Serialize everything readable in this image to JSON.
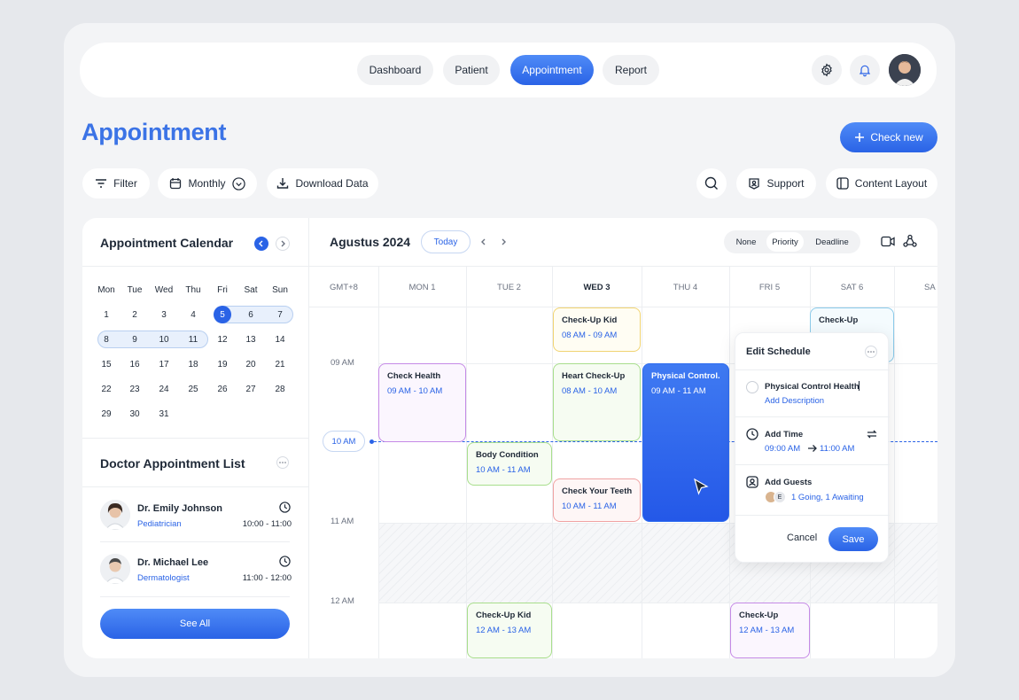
{
  "nav": {
    "tabs": [
      {
        "label": "Dashboard"
      },
      {
        "label": "Patient"
      },
      {
        "label": "Appointment"
      },
      {
        "label": "Report"
      }
    ],
    "settings_icon": "gear-icon",
    "notification_icon": "bell-icon"
  },
  "page": {
    "title": "Appointment",
    "check_new": "Check new"
  },
  "toolbar": {
    "filter": "Filter",
    "view_mode": "Monthly",
    "download": "Download Data",
    "support": "Support",
    "content_layout": "Content Layout"
  },
  "calendar": {
    "title": "Appointment Calendar",
    "weekdays": [
      "Mon",
      "Tue",
      "Wed",
      "Thu",
      "Fri",
      "Sat",
      "Sun"
    ],
    "weeks": [
      [
        "1",
        "2",
        "3",
        "4",
        "5",
        "6",
        "7"
      ],
      [
        "8",
        "9",
        "10",
        "11",
        "12",
        "13",
        "14"
      ],
      [
        "15",
        "16",
        "17",
        "18",
        "19",
        "20",
        "21"
      ],
      [
        "22",
        "23",
        "24",
        "25",
        "26",
        "27",
        "28"
      ],
      [
        "29",
        "30",
        "31",
        "",
        "",
        "",
        ""
      ]
    ],
    "selected_day": "5"
  },
  "doctors": {
    "title": "Doctor Appointment List",
    "list": [
      {
        "name": "Dr. Emily Johnson",
        "specialty": "Pediatrician",
        "time": "10:00 - 11:00"
      },
      {
        "name": "Dr. Michael Lee",
        "specialty": "Dermatologist",
        "time": "11:00 - 12:00"
      }
    ],
    "see_all": "See All"
  },
  "schedule": {
    "month": "Agustus 2024",
    "today": "Today",
    "filters": [
      "None",
      "Priority",
      "Deadline"
    ],
    "timezone": "GMT+8",
    "days": [
      "MON 1",
      "TUE 2",
      "WED 3",
      "THU 4",
      "FRI 5",
      "SAT 6",
      "SA"
    ],
    "times": [
      "09 AM",
      "10 AM",
      "11 AM",
      "12 AM"
    ],
    "events": [
      {
        "title": "Check-Up Kid",
        "time": "08 AM - 09 AM"
      },
      {
        "title": "Check-Up",
        "time": ""
      },
      {
        "title": "Check Health",
        "time": "09 AM - 10 AM"
      },
      {
        "title": "Heart Check-Up",
        "time": "08 AM - 10 AM"
      },
      {
        "title": "Physical Control...",
        "time": "09 AM - 11 AM"
      },
      {
        "title": "Body Condition",
        "time": "10 AM - 11 AM"
      },
      {
        "title": "Check Your Teeth",
        "time": "10 AM - 11 AM"
      },
      {
        "title": "Check-Up Kid",
        "time": "12 AM - 13 AM"
      },
      {
        "title": "Check-Up",
        "time": "12 AM - 13 AM"
      }
    ]
  },
  "edit": {
    "title": "Edit Schedule",
    "event_name": "Physical Control Health",
    "add_description": "Add Description",
    "add_time": "Add Time",
    "time_start": "09:00 AM",
    "time_end": "11:00 AM",
    "add_guests": "Add Guests",
    "guest_badge": "E",
    "guests_status": "1 Going, 1 Awaiting",
    "cancel": "Cancel",
    "save": "Save"
  },
  "colors": {
    "accent": "#2a63e6",
    "yellow": "#f5d76e",
    "purple": "#c58ae6",
    "green": "#a8de8c",
    "red": "#f0a2a2",
    "blue_event": "#2f6df0",
    "teal": "#7cc6e8"
  }
}
